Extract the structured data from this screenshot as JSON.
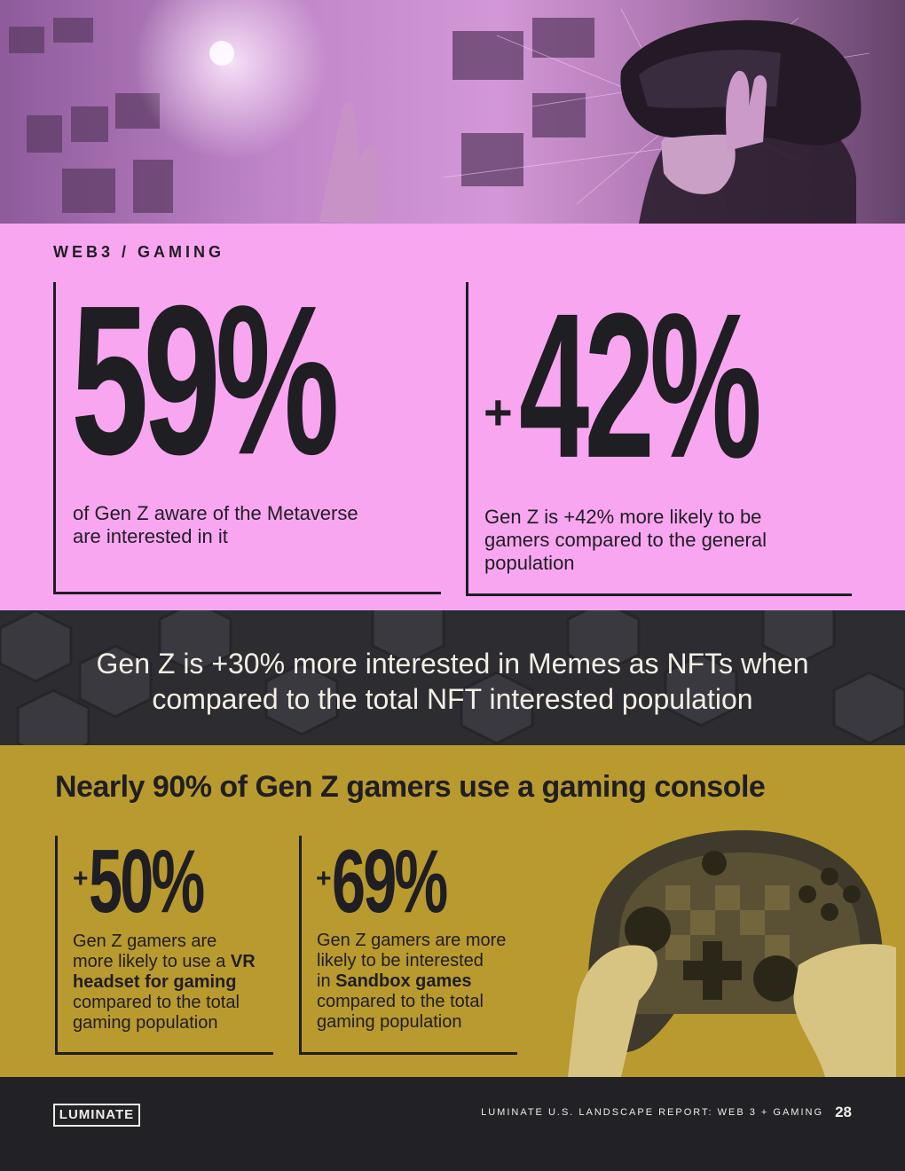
{
  "section_label": "WEB3 / GAMING",
  "stat1": {
    "value": "59%",
    "text_line1": "of Gen Z aware of the Metaverse",
    "text_line2": "are interested in it"
  },
  "stat2": {
    "prefix": "+",
    "value": "42%",
    "text_line1": "Gen Z is +42% more likely to be",
    "text_line2": "gamers compared to the general",
    "text_line3": "population"
  },
  "band": {
    "line1": "Gen Z is +30% more interested in Memes as NFTs when",
    "line2": "compared to the total NFT interested population"
  },
  "gaming": {
    "title": "Nearly 90% of Gen Z gamers use a gaming console",
    "stat_a": {
      "prefix": "+",
      "value": "50%",
      "line1": "Gen Z gamers are",
      "line2": "more likely to use a ",
      "line2_bold": "VR",
      "line3_bold": "headset for gaming",
      "line4": "compared to the total",
      "line5": "gaming population"
    },
    "stat_b": {
      "prefix": "+",
      "value": "69%",
      "line1": "Gen Z gamers are more",
      "line2": "likely to be interested",
      "line3": "in ",
      "line3_bold": "Sandbox games",
      "line4": "compared to the total",
      "line5": "gaming population"
    }
  },
  "footer": {
    "logo": "LUMINATE",
    "report": "LUMINATE U.S. LANDSCAPE REPORT: WEB 3 + GAMING",
    "page_number": "28"
  },
  "colors": {
    "pink": "#f9a6f1",
    "gold": "#b99a2e",
    "dark": "#222126",
    "ink": "#1f1e23"
  },
  "images": {
    "hero": "vr-headset-woman-photo",
    "band": "hexagon-pattern",
    "controller": "game-controller-photo"
  }
}
